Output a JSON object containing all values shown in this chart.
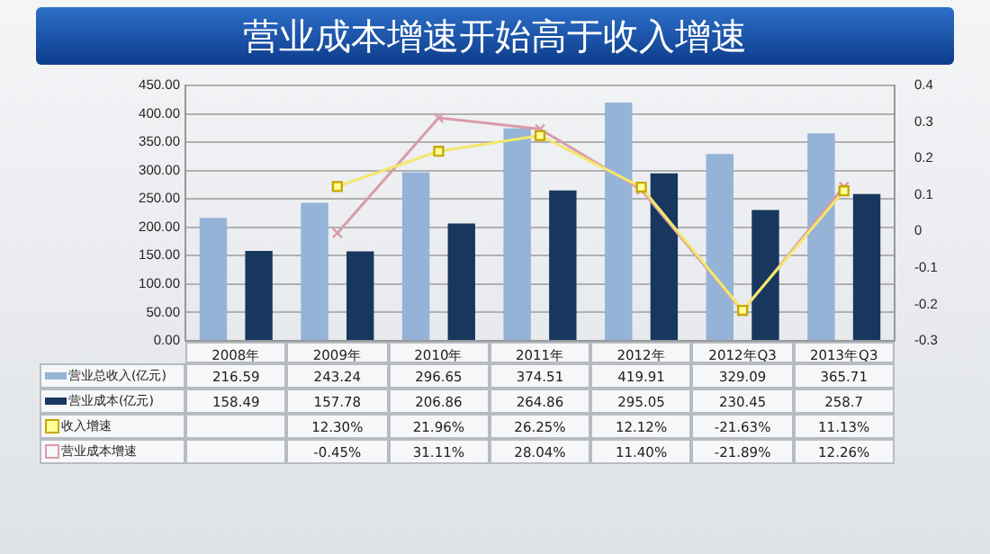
{
  "chart_data": {
    "type": "bar",
    "title": "营业成本增速开始高于收入增速",
    "categories": [
      "2008年",
      "2009年",
      "2010年",
      "2011年",
      "2012年",
      "2012年Q3",
      "2013年Q3"
    ],
    "series": [
      {
        "name": "营业总收入(亿元)",
        "color": "#95b3d7",
        "values": [
          216.59,
          243.24,
          296.65,
          374.51,
          419.91,
          329.09,
          365.71
        ]
      },
      {
        "name": "营业成本(亿元)",
        "color": "#17375e",
        "values": [
          158.49,
          157.78,
          206.86,
          264.86,
          295.05,
          230.45,
          258.7
        ]
      },
      {
        "name": "收入增速",
        "type": "line",
        "axis": "y2",
        "color": "#f2e86a",
        "marker": "square",
        "values": [
          null,
          0.123,
          0.2196,
          0.2625,
          0.1212,
          -0.2163,
          0.1113
        ],
        "value_labels": [
          null,
          "12.30%",
          "21.96%",
          "26.25%",
          "12.12%",
          "-21.63%",
          "11.13%"
        ]
      },
      {
        "name": "营业成本增速",
        "type": "line",
        "axis": "y2",
        "color": "#d99ca8",
        "marker": "cross",
        "values": [
          null,
          -0.0045,
          0.3111,
          0.2804,
          0.114,
          -0.2189,
          0.1226
        ],
        "value_labels": [
          null,
          "-0.45%",
          "31.11%",
          "28.04%",
          "11.40%",
          "-21.89%",
          "12.26%"
        ]
      }
    ],
    "ylim": [
      0,
      450
    ],
    "yticks": [
      {
        "value": 0,
        "label": "0.00"
      },
      {
        "value": 50,
        "label": "50.00"
      },
      {
        "value": 100,
        "label": "100.00"
      },
      {
        "value": 150,
        "label": "150.00"
      },
      {
        "value": 200,
        "label": "200.00"
      },
      {
        "value": 250,
        "label": "250.00"
      },
      {
        "value": 300,
        "label": "300.00"
      },
      {
        "value": 350,
        "label": "350.00"
      },
      {
        "value": 400,
        "label": "400.00"
      },
      {
        "value": 450,
        "label": "450.00"
      }
    ],
    "y2lim": [
      -0.3,
      0.4
    ],
    "y2ticks": [
      -0.3,
      -0.2,
      -0.1,
      0,
      0.1,
      0.2,
      0.3,
      0.4
    ],
    "grid": "y",
    "data_labels": true,
    "legend": "bottom left"
  }
}
